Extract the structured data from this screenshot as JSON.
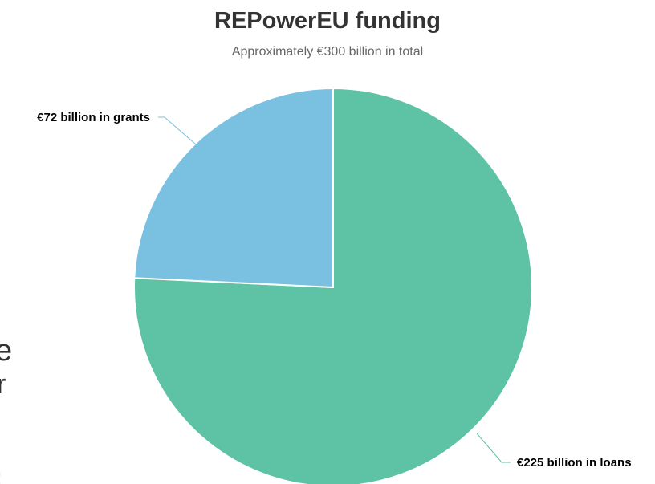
{
  "chart_data": {
    "type": "pie",
    "title": "REPowerEU funding",
    "subtitle": "Approximately €300 billion in total",
    "slices": [
      {
        "label": "€225 billion in loans",
        "value": 225,
        "color": "#5ec2a4"
      },
      {
        "label": "€72 billion in grants",
        "value": 72,
        "color": "#7ac0e0"
      }
    ],
    "legend": "none"
  }
}
